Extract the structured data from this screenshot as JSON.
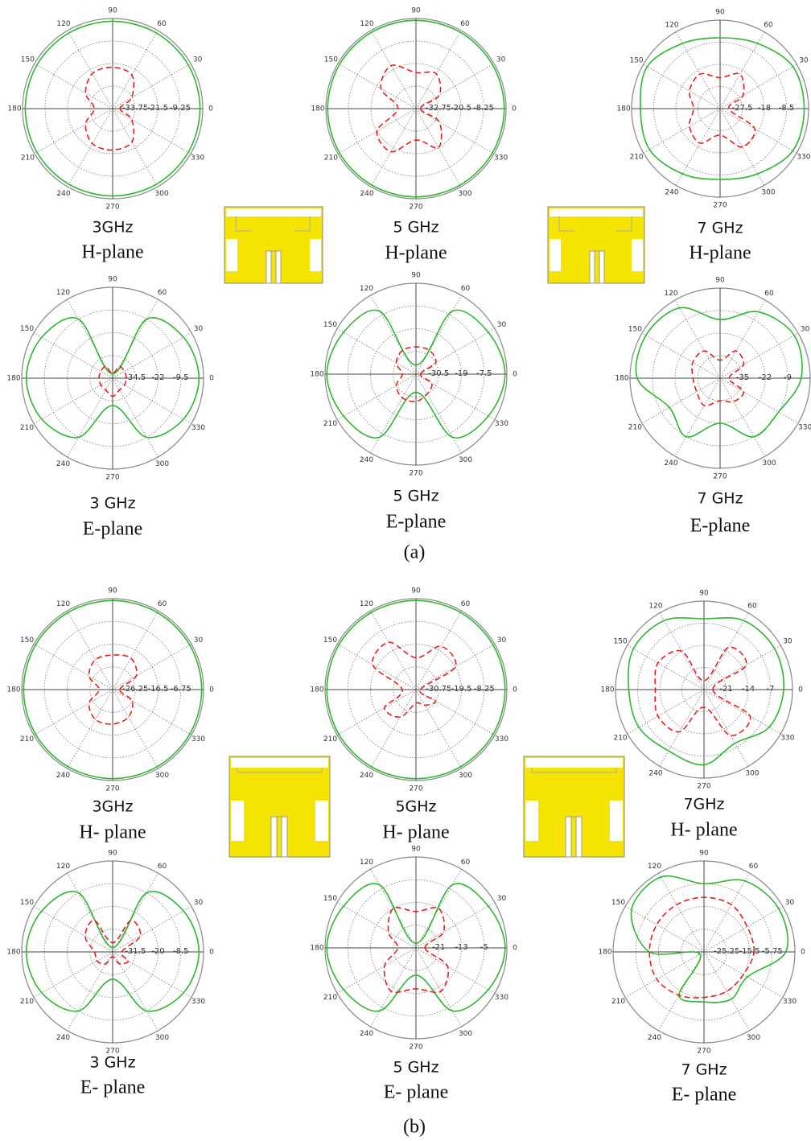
{
  "captions": [
    "(a)",
    "(b)"
  ],
  "chart_data": [
    {
      "type": "polar",
      "title": "3GHz",
      "subtitle": "H-plane",
      "theta": [
        0,
        30,
        60,
        90,
        120,
        150,
        180,
        210,
        240,
        270,
        300,
        330
      ],
      "thetaticks": [
        0,
        30,
        60,
        90,
        120,
        150,
        180,
        210,
        240,
        270,
        300,
        330
      ],
      "rlim": [
        -46,
        3
      ],
      "rticks": [
        -33.75,
        -21.5,
        -9.25
      ],
      "series": [
        {
          "color": "#2fb52f",
          "dashed": false,
          "values": [
            1.5,
            1.5,
            1.5,
            1.5,
            1.5,
            1.5,
            1.5,
            1.5,
            1.5,
            1.5,
            1.5,
            1.5
          ]
        },
        {
          "color": "#e02020",
          "dashed": true,
          "values": [
            -42,
            -34,
            -25,
            -23.5,
            -24,
            -29,
            -36,
            -29,
            -24,
            -23.5,
            -25,
            -34
          ]
        }
      ]
    },
    {
      "type": "polar",
      "title": "5 GHz",
      "subtitle": "H-plane",
      "theta": [
        0,
        30,
        60,
        90,
        120,
        150,
        180,
        210,
        240,
        270,
        300,
        330
      ],
      "thetaticks": [
        0,
        30,
        60,
        90,
        120,
        150,
        180,
        210,
        240,
        270,
        300,
        330
      ],
      "rlim": [
        -45,
        4
      ],
      "rticks": [
        -32.75,
        -20.5,
        -8.25
      ],
      "series": [
        {
          "color": "#2fb52f",
          "dashed": false,
          "values": [
            3,
            3,
            3,
            3,
            3,
            3,
            3,
            3,
            3,
            3,
            3,
            3
          ]
        },
        {
          "color": "#e02020",
          "dashed": true,
          "values": [
            -42.5,
            -30.3,
            -23,
            -25.4,
            -18,
            -23,
            -35.2,
            -20.5,
            -18,
            -27.9,
            -20.5,
            -30.3
          ]
        }
      ]
    },
    {
      "type": "polar",
      "title": "7 GHz",
      "subtitle": "H-plane",
      "theta": [
        0,
        30,
        60,
        90,
        120,
        150,
        180,
        210,
        240,
        270,
        300,
        330
      ],
      "thetaticks": [
        0,
        30,
        60,
        90,
        120,
        150,
        180,
        210,
        240,
        270,
        300,
        330
      ],
      "rlim": [
        -37,
        1
      ],
      "rticks": [
        -27.5,
        -18,
        -8.5
      ],
      "series": [
        {
          "color": "#2fb52f",
          "dashed": false,
          "values": [
            -0.9,
            -0.9,
            -4.7,
            -6.6,
            -4.7,
            -0.9,
            -2.8,
            -2,
            -4.7,
            -6.6,
            -4.7,
            -0.9
          ]
        },
        {
          "color": "#e02020",
          "dashed": true,
          "values": [
            -33.2,
            -25.6,
            -19.9,
            -23.7,
            -19.9,
            -21.8,
            -25.6,
            -21.8,
            -19.9,
            -25.6,
            -18,
            -19.9
          ]
        }
      ]
    },
    {
      "type": "polar",
      "title": "3 GHz",
      "subtitle": "E-plane",
      "theta": [
        0,
        30,
        60,
        90,
        120,
        150,
        180,
        210,
        240,
        270,
        300,
        330
      ],
      "thetaticks": [
        0,
        30,
        60,
        90,
        120,
        150,
        180,
        210,
        240,
        270,
        300,
        330
      ],
      "rlim": [
        -47,
        3
      ],
      "rticks": [
        -34.5,
        -22,
        -9.5
      ],
      "series": [
        {
          "color": "#2fb52f",
          "dashed": false,
          "values": [
            0.5,
            -2,
            -9.5,
            -44.5,
            -9.5,
            -2,
            0.5,
            -2,
            -9.5,
            -32,
            -9.5,
            -2
          ]
        },
        {
          "color": "#e02020",
          "dashed": true,
          "values": [
            -39.5,
            -39.5,
            -39.5,
            -44.5,
            -39.5,
            -39.5,
            -39.5,
            -39.5,
            -39.5,
            -37,
            -39.5,
            -39.5
          ]
        }
      ]
    },
    {
      "type": "polar",
      "title": "5 GHz",
      "subtitle": "E-plane",
      "theta": [
        0,
        30,
        60,
        90,
        120,
        150,
        180,
        210,
        240,
        270,
        300,
        330
      ],
      "thetaticks": [
        0,
        30,
        60,
        90,
        120,
        150,
        180,
        210,
        240,
        270,
        300,
        330
      ],
      "rlim": [
        -42,
        4
      ],
      "rticks": [
        -30.5,
        -19,
        -7.5
      ],
      "series": [
        {
          "color": "#2fb52f",
          "dashed": false,
          "values": [
            3.1,
            0.3,
            -5.2,
            -37.4,
            -5.2,
            0.3,
            3.1,
            0.3,
            -5.2,
            -32.8,
            -5.2,
            0.3
          ]
        },
        {
          "color": "#e02020",
          "dashed": true,
          "values": [
            -39.7,
            -30.5,
            -28.2,
            -28.2,
            -28.2,
            -30.5,
            -35.1,
            -30.5,
            -28.2,
            -28.2,
            -30.5,
            -32.8
          ]
        }
      ]
    },
    {
      "type": "polar",
      "title": "7 GHz",
      "subtitle": "E-plane",
      "theta": [
        0,
        30,
        60,
        90,
        120,
        150,
        180,
        210,
        240,
        270,
        300,
        330
      ],
      "thetaticks": [
        0,
        30,
        60,
        90,
        120,
        150,
        180,
        210,
        240,
        270,
        300,
        330
      ],
      "rlim": [
        -48,
        4
      ],
      "rticks": [
        -35,
        -22,
        -9
      ],
      "series": [
        {
          "color": "#2fb52f",
          "dashed": false,
          "values": [
            -1.2,
            1.4,
            -3.8,
            -14.2,
            -1.2,
            1.4,
            -0.2,
            -14.2,
            -9,
            -22,
            -9,
            -9
          ]
        },
        {
          "color": "#e02020",
          "dashed": true,
          "values": [
            -42.8,
            -32.4,
            -29.8,
            -37.6,
            -29.8,
            -29.8,
            -32.4,
            -32.4,
            -29.8,
            -35,
            -32.4,
            -32.4
          ]
        }
      ]
    },
    {
      "type": "polar",
      "title": "3GHz",
      "subtitle": "H- plane",
      "theta": [
        0,
        30,
        60,
        90,
        120,
        150,
        180,
        210,
        240,
        270,
        300,
        330
      ],
      "thetaticks": [
        0,
        30,
        60,
        90,
        120,
        150,
        180,
        210,
        240,
        270,
        300,
        330
      ],
      "rlim": [
        -36,
        3
      ],
      "rticks": [
        -26.25,
        -16.5,
        -6.75
      ],
      "series": [
        {
          "color": "#2fb52f",
          "dashed": false,
          "values": [
            2.2,
            2.2,
            2.2,
            2.2,
            2.2,
            2.2,
            2.2,
            2.2,
            2.2,
            2.2,
            2.2,
            2.2
          ]
        },
        {
          "color": "#e02020",
          "dashed": true,
          "values": [
            -32.9,
            -24.3,
            -20.4,
            -21.2,
            -21.2,
            -24.3,
            -30.2,
            -24.3,
            -21.2,
            -21.2,
            -22.4,
            -26.3
          ]
        }
      ]
    },
    {
      "type": "polar",
      "title": "5GHz",
      "subtitle": "H- plane",
      "theta": [
        0,
        30,
        60,
        90,
        120,
        150,
        180,
        210,
        240,
        270,
        300,
        330
      ],
      "thetaticks": [
        0,
        30,
        60,
        90,
        120,
        150,
        180,
        210,
        240,
        270,
        300,
        330
      ],
      "rlim": [
        -42,
        3
      ],
      "rticks": [
        -30.75,
        -19.5,
        -8.25
      ],
      "series": [
        {
          "color": "#2fb52f",
          "dashed": false,
          "values": [
            2.1,
            2.1,
            2.1,
            2.1,
            2.1,
            2.1,
            2.1,
            2.1,
            2.1,
            2.1,
            2.1,
            2.1
          ]
        },
        {
          "color": "#e02020",
          "dashed": true,
          "values": [
            -39.75,
            -19.5,
            -17.25,
            -26.25,
            -15,
            -17.25,
            -35.25,
            -24,
            -26.25,
            -35.25,
            -33,
            -30.75
          ]
        }
      ]
    },
    {
      "type": "polar",
      "title": "7GHz",
      "subtitle": "H- plane",
      "theta": [
        0,
        30,
        60,
        90,
        120,
        150,
        180,
        210,
        240,
        270,
        300,
        330
      ],
      "thetaticks": [
        0,
        30,
        60,
        90,
        120,
        150,
        180,
        210,
        240,
        270,
        300,
        330
      ],
      "rlim": [
        -28,
        0
      ],
      "rticks": [
        -21,
        -14,
        -7
      ],
      "series": [
        {
          "color": "#2fb52f",
          "dashed": false,
          "values": [
            -2.8,
            -2.2,
            -2.8,
            -5.6,
            -2.8,
            -2.2,
            -4.2,
            -4.2,
            -5.6,
            -4.2,
            -8.4,
            -4.2
          ]
        },
        {
          "color": "#e02020",
          "dashed": true,
          "values": [
            -25.2,
            -12.6,
            -12.6,
            -25.2,
            -14,
            -11.2,
            -12.6,
            -11.2,
            -12.6,
            -22.4,
            -11.2,
            -11.2
          ]
        }
      ]
    },
    {
      "type": "polar",
      "title": "3 GHz",
      "subtitle": "E- plane",
      "theta": [
        0,
        30,
        60,
        90,
        120,
        150,
        180,
        210,
        240,
        270,
        300,
        330
      ],
      "thetaticks": [
        0,
        30,
        60,
        90,
        120,
        150,
        180,
        210,
        240,
        270,
        300,
        330
      ],
      "rlim": [
        -43,
        3
      ],
      "rticks": [
        -31.5,
        -20,
        -8.5
      ],
      "series": [
        {
          "color": "#2fb52f",
          "dashed": false,
          "values": [
            0.7,
            -1.6,
            -8.5,
            -40.7,
            -8.5,
            -1.6,
            0.7,
            -1.6,
            -8.5,
            -29.2,
            -8.5,
            -1.6
          ]
        },
        {
          "color": "#e02020",
          "dashed": true,
          "values": [
            -38.4,
            -26.9,
            -24.6,
            -38.4,
            -24.6,
            -26.9,
            -33.8,
            -33.8,
            -36.1,
            -40.7,
            -36.1,
            -33.8
          ]
        }
      ]
    },
    {
      "type": "polar",
      "title": "5 GHz",
      "subtitle": "E- plane",
      "theta": [
        0,
        30,
        60,
        90,
        120,
        150,
        180,
        210,
        240,
        270,
        300,
        330
      ],
      "thetaticks": [
        0,
        30,
        60,
        90,
        120,
        150,
        180,
        210,
        240,
        270,
        300,
        330
      ],
      "rlim": [
        -29,
        3
      ],
      "rticks": [
        -21,
        -13,
        -5
      ],
      "series": [
        {
          "color": "#2fb52f",
          "dashed": false,
          "values": [
            2.4,
            0.4,
            -3.4,
            -27.4,
            -3.4,
            0.4,
            2.4,
            0.4,
            -3.4,
            -19.4,
            -3.4,
            0.4
          ]
        },
        {
          "color": "#e02020",
          "dashed": true,
          "values": [
            -25.8,
            -17.8,
            -13,
            -16.2,
            -13,
            -17.8,
            -22.6,
            -16.2,
            -11.4,
            -14.6,
            -11.4,
            -16.2
          ]
        }
      ]
    },
    {
      "type": "polar",
      "title": "7 GHz",
      "subtitle": "E- plane",
      "theta": [
        0,
        30,
        60,
        90,
        120,
        150,
        180,
        210,
        240,
        270,
        300,
        330
      ],
      "thetaticks": [
        0,
        30,
        60,
        90,
        120,
        150,
        180,
        210,
        240,
        270,
        300,
        330
      ],
      "rlim": [
        -35,
        4
      ],
      "rticks": [
        -25.25,
        -15.5,
        -5.75
      ],
      "series": [
        {
          "color": "#2fb52f",
          "dashed": false,
          "values": [
            0.1,
            2.05,
            0.1,
            -5.75,
            2.05,
            0.9,
            -11.6,
            -33,
            -13.55,
            -13.55,
            -11.6,
            -13.55
          ]
        },
        {
          "color": "#e02020",
          "dashed": true,
          "values": [
            -13.55,
            -13.55,
            -11.6,
            -11.6,
            -11.6,
            -11.6,
            -11.6,
            -11.6,
            -13.55,
            -15.5,
            -15.5,
            -15.5
          ]
        }
      ]
    }
  ]
}
